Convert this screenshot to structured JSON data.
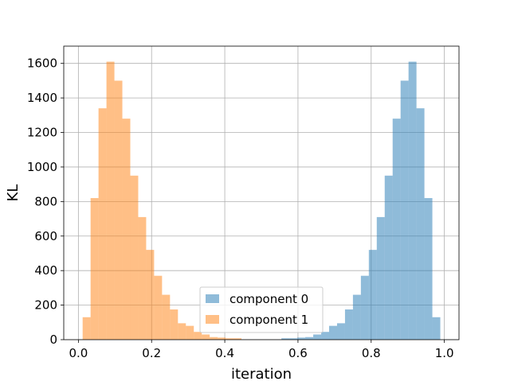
{
  "chart_data": {
    "type": "bar",
    "xlabel": "iteration",
    "ylabel": "KL",
    "xlim": [
      -0.04,
      1.04
    ],
    "ylim": [
      0,
      1700
    ],
    "x_ticks": [
      0.0,
      0.2,
      0.4,
      0.6,
      0.8,
      1.0
    ],
    "x_tick_labels": [
      "0.0",
      "0.2",
      "0.4",
      "0.6",
      "0.8",
      "1.0"
    ],
    "y_ticks": [
      0,
      200,
      400,
      600,
      800,
      1000,
      1200,
      1400,
      1600
    ],
    "y_tick_labels": [
      "0",
      "200",
      "400",
      "600",
      "800",
      "1000",
      "1200",
      "1400",
      "1600"
    ],
    "grid": true,
    "legend_position": "lower-center",
    "bin_width": 0.0217,
    "series": [
      {
        "name": "component 0",
        "color": "#1f77b4",
        "alpha": 0.5,
        "bin_starts": [
          0.5548,
          0.5765,
          0.5982,
          0.6199,
          0.6417,
          0.6634,
          0.6851,
          0.7068,
          0.7285,
          0.7502,
          0.7719,
          0.7936,
          0.8153,
          0.837,
          0.8587,
          0.8804,
          0.9021,
          0.9238,
          0.9455,
          0.9672
        ],
        "values": [
          8,
          8,
          12,
          15,
          30,
          45,
          80,
          95,
          175,
          260,
          370,
          520,
          710,
          950,
          1280,
          1500,
          1610,
          1340,
          820,
          130
        ]
      },
      {
        "name": "component 1",
        "color": "#ff7f0e",
        "alpha": 0.5,
        "bin_starts": [
          0.0116,
          0.0333,
          0.055,
          0.0767,
          0.0984,
          0.1201,
          0.1418,
          0.1635,
          0.1852,
          0.2069,
          0.2286,
          0.2503,
          0.272,
          0.2937,
          0.3154,
          0.3371,
          0.3588,
          0.3805,
          0.4022,
          0.4239
        ],
        "values": [
          130,
          820,
          1340,
          1610,
          1500,
          1280,
          950,
          710,
          520,
          370,
          260,
          175,
          95,
          80,
          45,
          30,
          15,
          12,
          8,
          8
        ]
      }
    ]
  }
}
